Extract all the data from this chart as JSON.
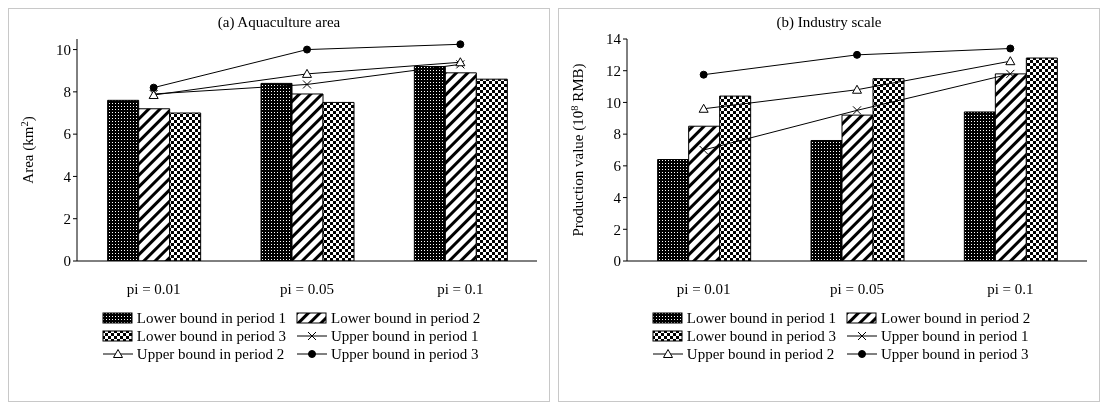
{
  "chart_data": [
    {
      "type": "bar",
      "title": "(a) Aquaculture area",
      "ylabel": "Area (km$^{2}$)",
      "categories": [
        "pi = 0.01",
        "pi = 0.05",
        "pi = 0.1"
      ],
      "ylim": [
        0,
        10.5
      ],
      "yticks": [
        0,
        2,
        4,
        6,
        8,
        10
      ],
      "grid": false,
      "legend": "bottom",
      "series": [
        {
          "name": "Lower bound in period 1",
          "color": "#000000",
          "values": [
            7.6,
            8.4,
            9.2
          ]
        },
        {
          "name": "Lower bound in period 2",
          "color": "#000000",
          "values": [
            7.2,
            7.9,
            8.9
          ]
        },
        {
          "name": "Lower bound in period 3",
          "color": "#000000",
          "values": [
            7.0,
            7.5,
            8.6
          ]
        },
        {
          "name": "Upper bound in period 1",
          "type": "line",
          "marker": "cross",
          "color": "#000000",
          "values": [
            7.9,
            8.35,
            9.3
          ]
        },
        {
          "name": "Upper bound in period 2",
          "type": "line",
          "marker": "triangle",
          "color": "#000000",
          "values": [
            7.85,
            8.85,
            9.4
          ]
        },
        {
          "name": "Upper bound in period 3",
          "type": "line",
          "marker": "circle",
          "color": "#000000",
          "values": [
            8.2,
            10.0,
            10.25
          ]
        }
      ]
    },
    {
      "type": "bar",
      "title": "(b) Industry scale",
      "ylabel": "Production value (10$^{8}$ RMB)",
      "categories": [
        "pi = 0.01",
        "pi = 0.05",
        "pi = 0.1"
      ],
      "ylim": [
        0,
        14
      ],
      "yticks": [
        0,
        2,
        4,
        6,
        8,
        10,
        12,
        14
      ],
      "grid": false,
      "legend": "bottom",
      "series": [
        {
          "name": "Lower bound in period 1",
          "color": "#000000",
          "values": [
            6.4,
            7.6,
            9.4
          ]
        },
        {
          "name": "Lower bound in period 2",
          "color": "#000000",
          "values": [
            8.5,
            9.2,
            11.8
          ]
        },
        {
          "name": "Lower bound in period 3",
          "color": "#000000",
          "values": [
            10.4,
            11.5,
            12.8
          ]
        },
        {
          "name": "Upper bound in period 1",
          "type": "line",
          "marker": "cross",
          "color": "#000000",
          "values": [
            7.0,
            9.5,
            11.8
          ]
        },
        {
          "name": "Upper bound in period 2",
          "type": "line",
          "marker": "triangle",
          "color": "#000000",
          "values": [
            9.6,
            10.8,
            12.6
          ]
        },
        {
          "name": "Upper bound in period 3",
          "type": "line",
          "marker": "circle",
          "color": "#000000",
          "values": [
            11.75,
            13.0,
            13.4
          ]
        }
      ]
    }
  ]
}
